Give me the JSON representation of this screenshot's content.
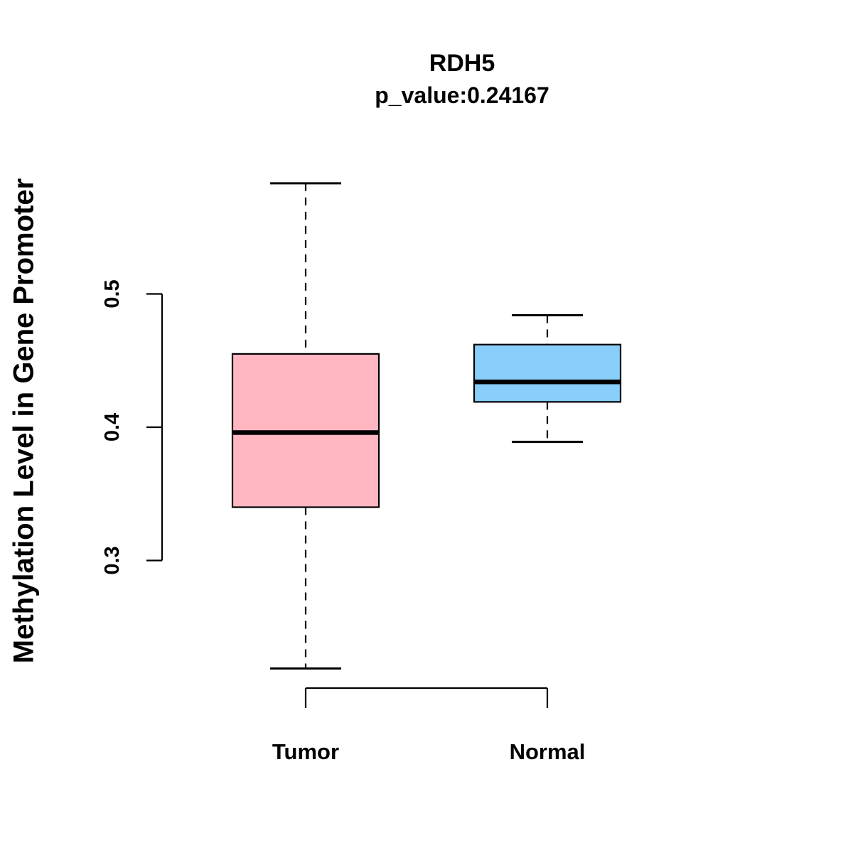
{
  "chart_data": {
    "type": "boxplot",
    "title": "RDH5",
    "subtitle": "p_value:0.24167",
    "ylabel": "Methylation Level in Gene Promoter",
    "xlabel": "",
    "categories": [
      "Tumor",
      "Normal"
    ],
    "yticks": [
      0.3,
      0.4,
      0.5
    ],
    "ytick_labels": [
      "0.3",
      "0.4",
      "0.5"
    ],
    "axis_range_shown": [
      0.3,
      0.5
    ],
    "legend": "none",
    "grid": false,
    "series": [
      {
        "name": "Tumor",
        "color": "#FFB6C1",
        "min": 0.219,
        "q1": 0.34,
        "median": 0.396,
        "q3": 0.455,
        "max": 0.583
      },
      {
        "name": "Normal",
        "color": "#87CEFA",
        "min": 0.389,
        "q1": 0.419,
        "median": 0.434,
        "q3": 0.462,
        "max": 0.484
      }
    ]
  }
}
